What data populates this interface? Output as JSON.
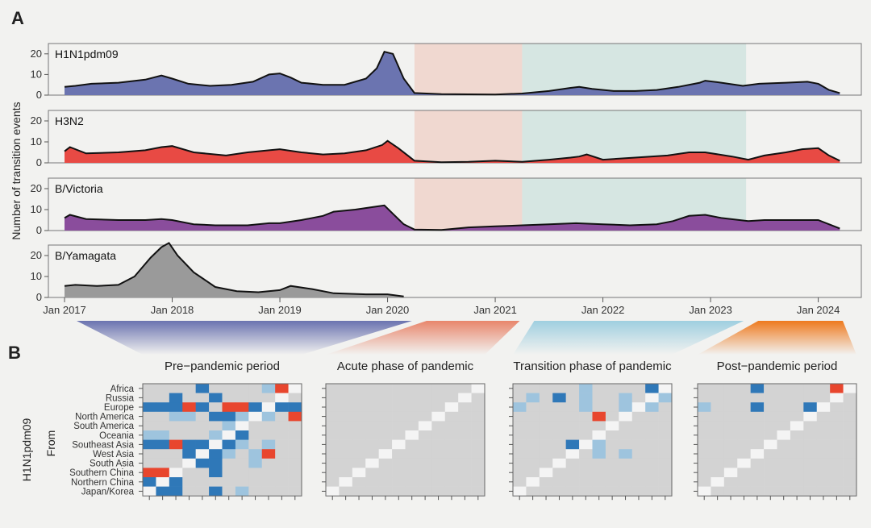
{
  "panels": {
    "a": "A",
    "b": "B"
  },
  "colors": {
    "acute_shade": "#f0d8d0",
    "transition_shade": "#d6e6e2",
    "H1N1pdm09": "#6b74b0",
    "H3N2": "#e84a44",
    "B_Victoria": "#8a4d9c",
    "B_Yamagata": "#9a9a9a",
    "heat_low": "#d3d3d3",
    "heat_mid": "#9ec4de",
    "heat_high": "#2f78b8",
    "heat_peak": "#e8462e",
    "heat_diag": "#f4f4f4"
  },
  "panel_a": {
    "ylabel": "Number of transition events",
    "yticks": [
      0,
      10,
      20
    ],
    "xticks": [
      "Jan 2017",
      "Jan 2018",
      "Jan 2019",
      "Jan 2020",
      "Jan 2021",
      "Jan 2022",
      "Jan 2023",
      "Jan 2024"
    ],
    "bands": [
      {
        "label": "Pre-pandemic period",
        "from": 2017.0,
        "to": 2020.25,
        "color": "#6b74b0"
      },
      {
        "label": "Acute phase of pandemic",
        "from": 2020.25,
        "to": 2021.25,
        "color": "#e8866c"
      },
      {
        "label": "Transition phase of pandemic",
        "from": 2021.25,
        "to": 2023.33,
        "color": "#9fcfe0"
      },
      {
        "label": "Post-pandemic period",
        "from": 2023.33,
        "to": 2024.25,
        "color": "#ee7a1e"
      }
    ]
  },
  "chart_data": [
    {
      "type": "area",
      "subtype": "H1N1pdm09",
      "x": [
        2017.0,
        2017.1,
        2017.25,
        2017.5,
        2017.75,
        2017.9,
        2018.0,
        2018.15,
        2018.35,
        2018.55,
        2018.75,
        2018.9,
        2019.0,
        2019.1,
        2019.2,
        2019.4,
        2019.6,
        2019.8,
        2019.9,
        2019.97,
        2020.05,
        2020.15,
        2020.25,
        2020.5,
        2021.0,
        2021.25,
        2021.5,
        2021.7,
        2021.78,
        2021.9,
        2022.1,
        2022.3,
        2022.5,
        2022.7,
        2022.9,
        2022.95,
        2023.1,
        2023.3,
        2023.45,
        2023.7,
        2023.9,
        2024.0,
        2024.1,
        2024.2
      ],
      "y": [
        4,
        4.5,
        5.5,
        6,
        7.5,
        9.5,
        8,
        5.5,
        4.5,
        5,
        6.5,
        10,
        10.5,
        8.5,
        6,
        5,
        5,
        8,
        13,
        21,
        20,
        8,
        1,
        0.5,
        0.3,
        0.8,
        2,
        3.5,
        4,
        3,
        2,
        2,
        2.5,
        4,
        6,
        7,
        6,
        4.5,
        5.5,
        6,
        6.5,
        5.5,
        2.5,
        1
      ]
    },
    {
      "type": "area",
      "subtype": "H3N2",
      "x": [
        2017.0,
        2017.05,
        2017.2,
        2017.5,
        2017.75,
        2017.9,
        2018.0,
        2018.2,
        2018.5,
        2018.7,
        2018.9,
        2019.0,
        2019.2,
        2019.4,
        2019.6,
        2019.8,
        2019.95,
        2020.0,
        2020.1,
        2020.25,
        2020.5,
        2020.75,
        2021.0,
        2021.25,
        2021.5,
        2021.7,
        2021.78,
        2021.85,
        2022.0,
        2022.3,
        2022.6,
        2022.8,
        2022.95,
        2023.2,
        2023.35,
        2023.5,
        2023.7,
        2023.85,
        2024.0,
        2024.1,
        2024.2
      ],
      "y": [
        5.5,
        7.5,
        4.5,
        5,
        6,
        7.5,
        8,
        5,
        3.5,
        5,
        6,
        6.5,
        5,
        4,
        4.5,
        6,
        8.5,
        10.5,
        7,
        1,
        0.3,
        0.5,
        1,
        0.5,
        1.5,
        2.5,
        3,
        4,
        1.5,
        2.5,
        3.5,
        5,
        5,
        3,
        1.5,
        3.5,
        5,
        6.5,
        7,
        3.5,
        1
      ]
    },
    {
      "type": "area",
      "subtype": "B/Victoria",
      "x": [
        2017.0,
        2017.05,
        2017.2,
        2017.5,
        2017.75,
        2017.9,
        2018.0,
        2018.2,
        2018.4,
        2018.7,
        2018.9,
        2019.0,
        2019.2,
        2019.4,
        2019.5,
        2019.7,
        2019.9,
        2019.97,
        2020.05,
        2020.15,
        2020.25,
        2020.5,
        2020.75,
        2021.0,
        2021.25,
        2021.5,
        2021.75,
        2022.0,
        2022.25,
        2022.5,
        2022.65,
        2022.8,
        2022.95,
        2023.1,
        2023.35,
        2023.5,
        2023.8,
        2024.0,
        2024.1,
        2024.2
      ],
      "y": [
        6,
        7.5,
        5.5,
        5,
        5,
        5.5,
        5,
        3,
        2.5,
        2.5,
        3.5,
        3.5,
        5,
        7,
        9,
        10,
        11.5,
        12,
        8,
        3,
        0.5,
        0.3,
        1.5,
        2,
        2.5,
        3,
        3.5,
        3,
        2.5,
        3,
        4.5,
        7,
        7.5,
        6,
        4.5,
        5,
        5,
        5,
        3,
        1
      ]
    },
    {
      "type": "area",
      "subtype": "B/Yamagata",
      "x": [
        2017.0,
        2017.1,
        2017.3,
        2017.5,
        2017.65,
        2017.8,
        2017.9,
        2017.97,
        2018.05,
        2018.2,
        2018.4,
        2018.6,
        2018.8,
        2019.0,
        2019.1,
        2019.3,
        2019.5,
        2019.8,
        2020.0,
        2020.15
      ],
      "y": [
        5.5,
        6,
        5.5,
        6,
        10,
        19,
        24,
        26,
        20,
        12,
        5,
        3,
        2.5,
        3.5,
        5.5,
        4,
        2,
        1.5,
        1.5,
        0.5
      ]
    }
  ],
  "series_labels": [
    "H1N1pdm09",
    "H3N2",
    "B/Victoria",
    "B/Yamagata"
  ],
  "panel_b": {
    "ylabel_outer": "H1N1pdm09",
    "ylabel_inner": "From",
    "regions": [
      "Africa",
      "Russia",
      "Europe",
      "North America",
      "South America",
      "Oceania",
      "Southeast Asia",
      "West Asia",
      "South Asia",
      "Southern China",
      "Northern China",
      "Japan/Korea"
    ],
    "titles": [
      "Pre−pandemic period",
      "Acute phase of pandemic",
      "Transition phase of pandemic",
      "Post−pandemic period"
    ],
    "matrices": [
      [
        "000020000130",
        "002002000030",
        "222320332222",
        "001102213103",
        "000000110000",
        "110001020000",
        "223221210100",
        "000232101344",
        "000122001000",
        "330002000000",
        "212000000000",
        "022002010000"
      ],
      [
        "000000000000",
        "000000000000",
        "000000000000",
        "000000000000",
        "000000000000",
        "000000000000",
        "000000000000",
        "000000000000",
        "000000000000",
        "000000000000",
        "000000000000",
        "000000000000"
      ],
      [
        "000001000020",
        "010201001001",
        "100001001110",
        "000000300000",
        "000000000000",
        "000000000000",
        "000022100000",
        "000000101000",
        "000000000000",
        "000000000000",
        "000000000000",
        "000000000000"
      ],
      [
        "000020000030",
        "000000000000",
        "100020002000",
        "000000000000",
        "000000000000",
        "000000000000",
        "000000000000",
        "000000000000",
        "000000000000",
        "000000000000",
        "000000000000",
        "000000000000"
      ]
    ]
  }
}
